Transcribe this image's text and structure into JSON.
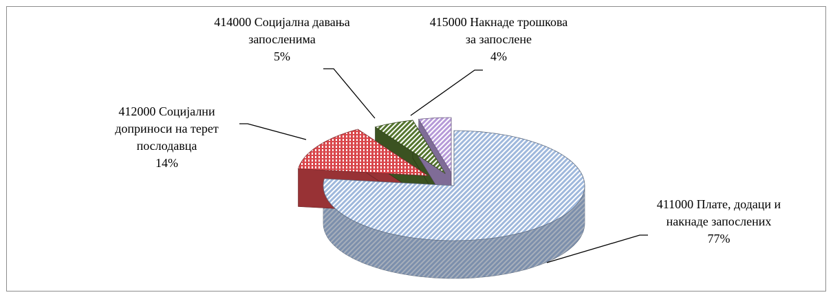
{
  "chart_data": {
    "type": "pie",
    "categories": [
      "411000 Плате, додаци и накнаде запослених",
      "412000 Социјални доприноси на терет послодавца",
      "414000 Социјална давања запосленима",
      "415000 Накнаде трошкова за запослене"
    ],
    "values": [
      77,
      14,
      5,
      4
    ],
    "value_labels": [
      "77%",
      "14%",
      "5%",
      "4%"
    ],
    "colors": [
      "#9fb8dc",
      "#d9474c",
      "#55752f",
      "#b69ad8"
    ]
  }
}
